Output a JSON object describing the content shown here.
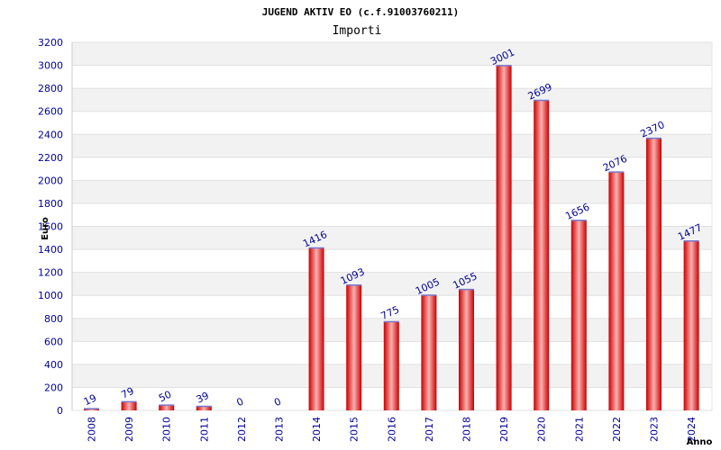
{
  "chart_data": {
    "type": "bar",
    "title": "JUGEND AKTIV EO (c.f.91003760211)",
    "subtitle": "Importi",
    "xlabel": "Anno",
    "ylabel": "Euro",
    "categories": [
      "2008",
      "2009",
      "2010",
      "2011",
      "2012",
      "2013",
      "2014",
      "2015",
      "2016",
      "2017",
      "2018",
      "2019",
      "2020",
      "2021",
      "2022",
      "2023",
      "2024"
    ],
    "values": [
      19,
      79,
      50,
      39,
      0,
      0,
      1416,
      1093,
      775,
      1005,
      1055,
      3001,
      2699,
      1656,
      2076,
      2370,
      1477
    ],
    "ylim": [
      0,
      3200
    ],
    "ytick_step": 200,
    "grid": true,
    "colors": {
      "bar_edge": "#c80000",
      "bar_center": "#ffb0b0",
      "bar_top": "#7777cc",
      "tick": "#000099",
      "grid_band": "#f2f2f2"
    }
  }
}
